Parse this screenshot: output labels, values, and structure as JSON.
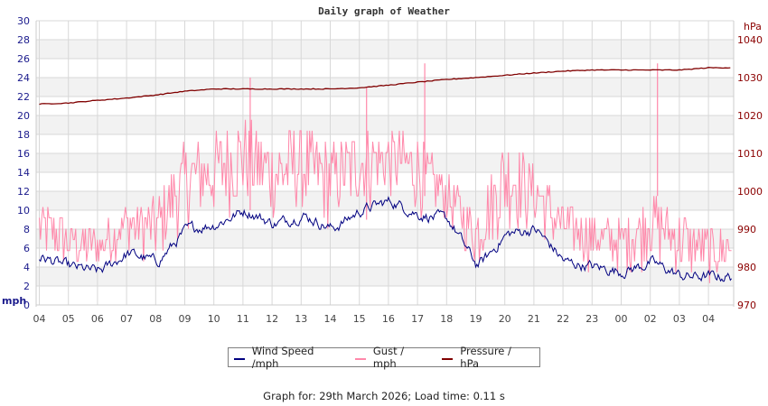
{
  "title": "Daily graph of Weather",
  "footer": "Graph for: 29th March 2026; Load time: 0.11 s",
  "colors": {
    "wind": "#000080",
    "gust": "#ff88aa",
    "pressure": "#800000",
    "left_axis_text": "#1a1a8c",
    "right_axis_text": "#8b0000",
    "x_axis_text": "#444444",
    "grid": "#d8d8d8",
    "band": "#f2f2f2"
  },
  "legend": [
    {
      "label": "Wind Speed /mph",
      "color": "#000080"
    },
    {
      "label": "Gust / mph",
      "color": "#ff88aa"
    },
    {
      "label": "Pressure / hPa",
      "color": "#800000"
    }
  ],
  "chart_data": {
    "type": "line",
    "title": "Daily graph of Weather",
    "xlabel": "",
    "ylabel": "mph",
    "ylabel_right": "hPa",
    "ylim": [
      0,
      30
    ],
    "ylim_right": [
      970,
      1045
    ],
    "y_ticks": [
      0,
      2,
      4,
      6,
      8,
      10,
      12,
      14,
      16,
      18,
      20,
      22,
      24,
      26,
      28,
      30
    ],
    "y_ticks_right": [
      970,
      980,
      990,
      1000,
      1010,
      1020,
      1030,
      1040
    ],
    "categories": [
      "04",
      "05",
      "06",
      "07",
      "08",
      "09",
      "10",
      "11",
      "12",
      "13",
      "14",
      "15",
      "16",
      "17",
      "18",
      "19",
      "20",
      "21",
      "22",
      "23",
      "00",
      "02",
      "03",
      "04"
    ],
    "grid": true,
    "legend_position": "bottom",
    "series": [
      {
        "name": "Wind Speed /mph",
        "axis": "left",
        "values": [
          5,
          4,
          3.5,
          5.5,
          4.5,
          8,
          8.5,
          10,
          8.5,
          9.5,
          8,
          10,
          11,
          9.5,
          9,
          4,
          7.5,
          8,
          4.5,
          4,
          3.5,
          4.5,
          3,
          3
        ]
      },
      {
        "name": "Gust / mph",
        "axis": "left",
        "values": [
          11,
          9,
          8,
          11,
          11,
          17,
          18,
          20,
          18,
          19,
          17,
          19,
          19,
          18,
          14,
          10,
          18,
          15,
          11,
          10,
          9,
          12,
          10,
          8
        ],
        "spikes": [
          {
            "x": "11",
            "value": 24
          },
          {
            "x": "15",
            "value": 23
          },
          {
            "x": "17",
            "value": 25.5
          },
          {
            "x": "02",
            "value": 25.5
          }
        ]
      },
      {
        "name": "Pressure / hPa",
        "axis": "right",
        "values": [
          1023,
          1023.3,
          1024,
          1024.6,
          1025.4,
          1026.4,
          1027,
          1027,
          1027,
          1027,
          1027,
          1027.3,
          1028,
          1028.8,
          1029.5,
          1030,
          1030.6,
          1031.2,
          1031.7,
          1032,
          1032,
          1032,
          1032,
          1032.6
        ]
      }
    ]
  }
}
